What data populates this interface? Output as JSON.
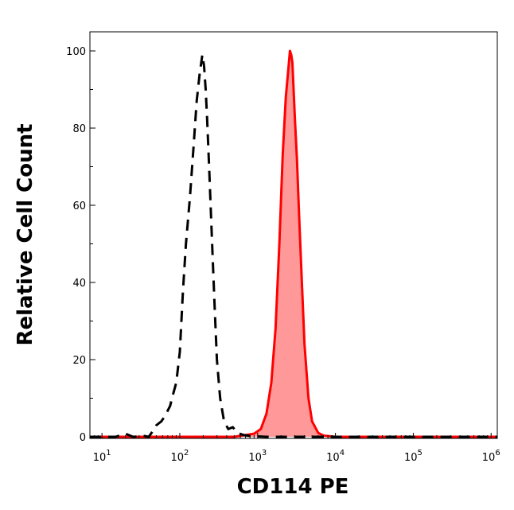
{
  "chart_data": {
    "type": "area",
    "title": "",
    "xlabel": "CD114 PE",
    "ylabel": "Relative Cell Count",
    "xscale": "log",
    "xlim": [
      7,
      1200000
    ],
    "ylim": [
      0,
      105
    ],
    "y_ticks": [
      0,
      20,
      40,
      60,
      80,
      100
    ],
    "y_tick_labels": [
      "0",
      "20",
      "40",
      "60",
      "80",
      "100"
    ],
    "x_ticks": [
      {
        "value": 10,
        "base": "10",
        "exp": "1"
      },
      {
        "value": 100,
        "base": "10",
        "exp": "2"
      },
      {
        "value": 1000,
        "base": "10",
        "exp": "3"
      },
      {
        "value": 10000,
        "base": "10",
        "exp": "4"
      },
      {
        "value": 100000,
        "base": "10",
        "exp": "5"
      },
      {
        "value": 1000000,
        "base": "10",
        "exp": "6"
      }
    ],
    "grid": false,
    "legend": "none",
    "series": [
      {
        "style": "dashed-outline",
        "color": "#000000",
        "x": [
          7,
          15,
          20,
          25,
          35,
          40,
          45,
          50,
          58,
          65,
          75,
          82,
          90,
          100,
          110,
          120,
          135,
          150,
          165,
          180,
          195,
          205,
          215,
          225,
          240,
          260,
          280,
          300,
          330,
          370,
          420,
          480,
          550,
          650,
          800,
          1000,
          1300,
          1800,
          2500,
          4000,
          10000,
          100000,
          1200000
        ],
        "y": [
          0,
          0,
          0.8,
          0,
          0.2,
          0,
          1.5,
          3,
          4,
          5.5,
          8,
          11,
          14,
          22,
          38,
          50,
          62,
          75,
          87,
          94,
          99,
          96,
          90,
          82,
          68,
          50,
          34,
          20,
          10,
          4,
          2,
          2.5,
          1,
          0.5,
          0.2,
          0.1,
          0,
          0,
          0,
          0,
          0,
          0,
          0
        ]
      },
      {
        "style": "filled",
        "color": "#ff0000",
        "fill": "#ff9999",
        "x": [
          7,
          100,
          500,
          900,
          1100,
          1300,
          1500,
          1700,
          1900,
          2100,
          2300,
          2500,
          2600,
          2700,
          2800,
          2900,
          3000,
          3200,
          3400,
          3700,
          4000,
          4500,
          5000,
          6000,
          7000,
          10000,
          100000,
          1200000
        ],
        "y": [
          0,
          0,
          0,
          0.8,
          2,
          6,
          14,
          28,
          50,
          73,
          88,
          96,
          100,
          99,
          97,
          90,
          83,
          72,
          58,
          40,
          24,
          10,
          4,
          1,
          0.3,
          0,
          0,
          0
        ]
      }
    ]
  }
}
